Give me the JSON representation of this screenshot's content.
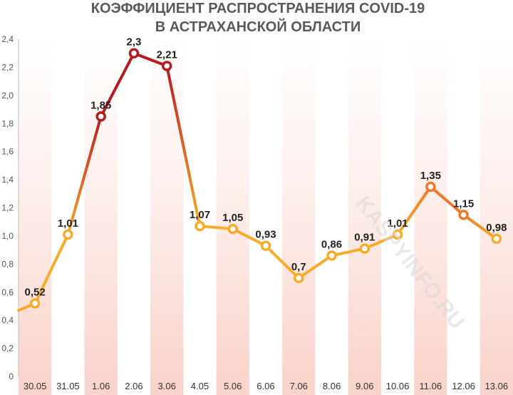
{
  "chart_data": {
    "type": "line",
    "title": [
      "КОЭФФИЦИЕНТ РАСПРОСТРАНЕНИЯ COVID-19",
      "В АСТРАХАНСКОЙ ОБЛАСТИ"
    ],
    "categories": [
      "30.05",
      "31.05",
      "1.06",
      "2.06",
      "3.06",
      "4.05",
      "5.06",
      "6.06",
      "7.06",
      "8.06",
      "9.06",
      "10.06",
      "11.06",
      "12.06",
      "13.06"
    ],
    "values": [
      0.52,
      1.01,
      1.85,
      2.3,
      2.21,
      1.07,
      1.05,
      0.93,
      0.7,
      0.86,
      0.91,
      1.01,
      1.35,
      1.15,
      0.98
    ],
    "value_labels": [
      "0,52",
      "1,01",
      "1,85",
      "2,3",
      "2,21",
      "1,07",
      "1,05",
      "0,93",
      "0,7",
      "0,86",
      "0,91",
      "1,01",
      "1,35",
      "1,15",
      "0,98"
    ],
    "lead_in_value": 0.47,
    "yticks": [
      "0",
      "0,2",
      "0,4",
      "0,6",
      "0,8",
      "1,0",
      "1,2",
      "1,4",
      "1,6",
      "1,8",
      "2,0",
      "2,2",
      "2,4"
    ],
    "ylim": [
      0,
      2.4
    ],
    "grid": false,
    "colors": {
      "low": "#f8ac2a",
      "mid": "#f0782a",
      "high": "#b81b1e",
      "point_fill": "#ffffff"
    }
  },
  "watermark": "KASPYINFO.RU"
}
